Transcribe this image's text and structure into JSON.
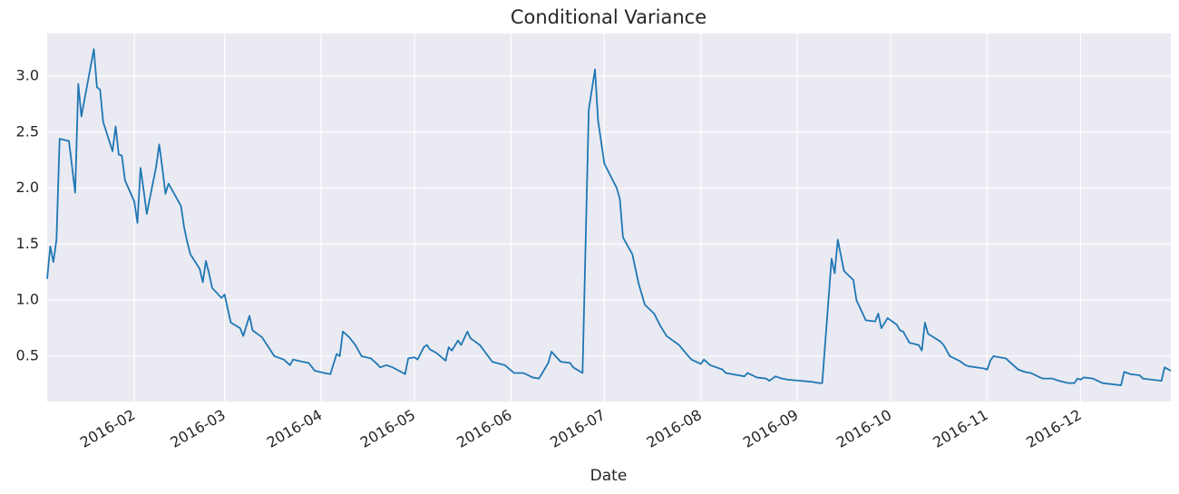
{
  "chart_data": {
    "type": "line",
    "title": "Conditional Variance",
    "x_label": "Date",
    "color": "#1f77b4",
    "grid": true,
    "xlim": [
      "2016-01-04",
      "2016-12-30"
    ],
    "ylim": [
      0.095,
      3.38
    ],
    "xticks": [
      {
        "value": "2016-02-01",
        "label": "2016-02"
      },
      {
        "value": "2016-03-01",
        "label": "2016-03"
      },
      {
        "value": "2016-04-01",
        "label": "2016-04"
      },
      {
        "value": "2016-05-01",
        "label": "2016-05"
      },
      {
        "value": "2016-06-01",
        "label": "2016-06"
      },
      {
        "value": "2016-07-01",
        "label": "2016-07"
      },
      {
        "value": "2016-08-01",
        "label": "2016-08"
      },
      {
        "value": "2016-09-01",
        "label": "2016-09"
      },
      {
        "value": "2016-10-01",
        "label": "2016-10"
      },
      {
        "value": "2016-11-01",
        "label": "2016-11"
      },
      {
        "value": "2016-12-01",
        "label": "2016-12"
      }
    ],
    "yticks": [
      0.5,
      {
        "value": 1,
        "label": "1.0"
      },
      1.5,
      {
        "value": 2,
        "label": "2.0"
      },
      2.5,
      {
        "value": 3,
        "label": "3.0"
      }
    ],
    "x": [
      "2016-01-04",
      "2016-01-05",
      "2016-01-06",
      "2016-01-07",
      "2016-01-08",
      "2016-01-11",
      "2016-01-13",
      "2016-01-14",
      "2016-01-15",
      "2016-01-19",
      "2016-01-20",
      "2016-01-21",
      "2016-01-22",
      "2016-01-25",
      "2016-01-26",
      "2016-01-27",
      "2016-01-28",
      "2016-01-29",
      "2016-02-01",
      "2016-02-02",
      "2016-02-03",
      "2016-02-04",
      "2016-02-05",
      "2016-02-08",
      "2016-02-09",
      "2016-02-10",
      "2016-02-11",
      "2016-02-12",
      "2016-02-16",
      "2016-02-17",
      "2016-02-18",
      "2016-02-19",
      "2016-02-22",
      "2016-02-23",
      "2016-02-24",
      "2016-02-25",
      "2016-02-26",
      "2016-02-29",
      "2016-03-01",
      "2016-03-03",
      "2016-03-06",
      "2016-03-07",
      "2016-03-09",
      "2016-03-10",
      "2016-03-13",
      "2016-03-17",
      "2016-03-20",
      "2016-03-22",
      "2016-03-23",
      "2016-03-26",
      "2016-03-28",
      "2016-03-30",
      "2016-04-02",
      "2016-04-04",
      "2016-04-06",
      "2016-04-07",
      "2016-04-08",
      "2016-04-10",
      "2016-04-12",
      "2016-04-14",
      "2016-04-17",
      "2016-04-19",
      "2016-04-20",
      "2016-04-22",
      "2016-04-24",
      "2016-04-26",
      "2016-04-28",
      "2016-04-29",
      "2016-05-01",
      "2016-05-02",
      "2016-05-04",
      "2016-05-05",
      "2016-05-06",
      "2016-05-08",
      "2016-05-11",
      "2016-05-12",
      "2016-05-13",
      "2016-05-15",
      "2016-05-16",
      "2016-05-18",
      "2016-05-19",
      "2016-05-22",
      "2016-05-26",
      "2016-05-30",
      "2016-06-02",
      "2016-06-05",
      "2016-06-08",
      "2016-06-10",
      "2016-06-13",
      "2016-06-14",
      "2016-06-17",
      "2016-06-20",
      "2016-06-21",
      "2016-06-24",
      "2016-06-26",
      "2016-06-28",
      "2016-06-29",
      "2016-07-01",
      "2016-07-05",
      "2016-07-06",
      "2016-07-07",
      "2016-07-10",
      "2016-07-12",
      "2016-07-14",
      "2016-07-17",
      "2016-07-19",
      "2016-07-21",
      "2016-07-25",
      "2016-07-28",
      "2016-07-29",
      "2016-08-01",
      "2016-08-02",
      "2016-08-04",
      "2016-08-08",
      "2016-08-09",
      "2016-08-11",
      "2016-08-15",
      "2016-08-16",
      "2016-08-19",
      "2016-08-22",
      "2016-08-23",
      "2016-08-25",
      "2016-08-27",
      "2016-08-29",
      "2016-09-02",
      "2016-09-06",
      "2016-09-08",
      "2016-09-09",
      "2016-09-12",
      "2016-09-13",
      "2016-09-14",
      "2016-09-16",
      "2016-09-19",
      "2016-09-20",
      "2016-09-23",
      "2016-09-26",
      "2016-09-27",
      "2016-09-28",
      "2016-09-30",
      "2016-10-03",
      "2016-10-04",
      "2016-10-05",
      "2016-10-07",
      "2016-10-10",
      "2016-10-11",
      "2016-10-12",
      "2016-10-13",
      "2016-10-17",
      "2016-10-18",
      "2016-10-20",
      "2016-10-23",
      "2016-10-25",
      "2016-10-26",
      "2016-10-31",
      "2016-11-01",
      "2016-11-02",
      "2016-11-03",
      "2016-11-07",
      "2016-11-11",
      "2016-11-13",
      "2016-11-15",
      "2016-11-18",
      "2016-11-19",
      "2016-11-22",
      "2016-11-24",
      "2016-11-27",
      "2016-11-29",
      "2016-11-30",
      "2016-12-01",
      "2016-12-02",
      "2016-12-05",
      "2016-12-08",
      "2016-12-14",
      "2016-12-15",
      "2016-12-17",
      "2016-12-20",
      "2016-12-21",
      "2016-12-27",
      "2016-12-28",
      "2016-12-30"
    ],
    "values": [
      1.19,
      1.48,
      1.34,
      1.54,
      2.44,
      2.42,
      1.96,
      2.93,
      2.64,
      3.24,
      2.9,
      2.88,
      2.59,
      2.33,
      2.55,
      2.3,
      2.29,
      2.07,
      1.88,
      1.69,
      2.18,
      1.98,
      1.77,
      2.19,
      2.39,
      2.18,
      1.95,
      2.04,
      1.84,
      1.65,
      1.52,
      1.41,
      1.28,
      1.16,
      1.35,
      1.24,
      1.11,
      1.02,
      1.05,
      0.8,
      0.75,
      0.68,
      0.86,
      0.73,
      0.67,
      0.5,
      0.47,
      0.42,
      0.47,
      0.45,
      0.44,
      0.37,
      0.35,
      0.34,
      0.52,
      0.5,
      0.72,
      0.67,
      0.6,
      0.5,
      0.48,
      0.43,
      0.4,
      0.42,
      0.4,
      0.37,
      0.34,
      0.48,
      0.49,
      0.47,
      0.58,
      0.6,
      0.56,
      0.53,
      0.46,
      0.58,
      0.55,
      0.64,
      0.6,
      0.72,
      0.66,
      0.6,
      0.45,
      0.42,
      0.35,
      0.35,
      0.31,
      0.3,
      0.44,
      0.54,
      0.45,
      0.44,
      0.4,
      0.35,
      2.7,
      3.06,
      2.6,
      2.22,
      2.0,
      1.9,
      1.56,
      1.41,
      1.15,
      0.96,
      0.88,
      0.77,
      0.68,
      0.6,
      0.5,
      0.47,
      0.43,
      0.47,
      0.42,
      0.38,
      0.35,
      0.34,
      0.32,
      0.35,
      0.31,
      0.3,
      0.28,
      0.32,
      0.3,
      0.29,
      0.28,
      0.27,
      0.26,
      0.26,
      1.37,
      1.24,
      1.54,
      1.26,
      1.18,
      1.0,
      0.82,
      0.81,
      0.88,
      0.75,
      0.84,
      0.78,
      0.73,
      0.72,
      0.62,
      0.6,
      0.55,
      0.8,
      0.7,
      0.63,
      0.6,
      0.5,
      0.46,
      0.42,
      0.41,
      0.39,
      0.38,
      0.46,
      0.5,
      0.48,
      0.38,
      0.36,
      0.35,
      0.31,
      0.3,
      0.3,
      0.28,
      0.26,
      0.26,
      0.3,
      0.29,
      0.31,
      0.3,
      0.26,
      0.24,
      0.36,
      0.34,
      0.33,
      0.3,
      0.28,
      0.4,
      0.37
    ]
  }
}
